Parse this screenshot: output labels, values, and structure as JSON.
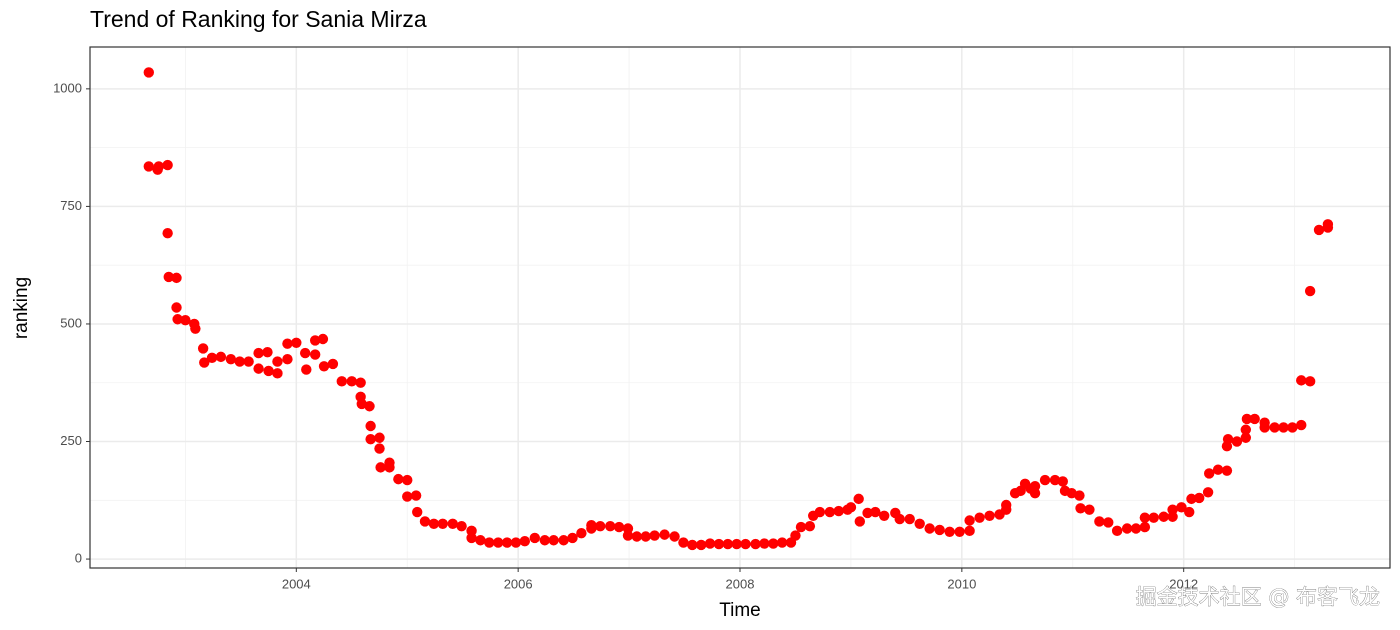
{
  "chart_data": {
    "type": "scatter",
    "title": "Trend of Ranking for Sania Mirza",
    "x_label": "Time",
    "y_label": "ranking",
    "color": "#ff0000",
    "grid": true,
    "watermark": "掘金技术社区 @ 布客飞龙",
    "xlim": [
      2002.14,
      2013.86
    ],
    "ylim": [
      -19,
      1089
    ],
    "xticks": [
      2004,
      2006,
      2008,
      2010,
      2012
    ],
    "yticks": [
      0,
      250,
      500,
      750,
      1000
    ],
    "x": [
      2002.67,
      2002.67,
      2002.75,
      2002.76,
      2002.84,
      2002.84,
      2002.85,
      2002.92,
      2002.92,
      2002.93,
      2003.0,
      2003.08,
      2003.09,
      2003.16,
      2003.17,
      2003.24,
      2003.32,
      2003.41,
      2003.49,
      2003.57,
      2003.66,
      2003.66,
      2003.74,
      2003.75,
      2003.83,
      2003.83,
      2003.92,
      2003.92,
      2004.0,
      2004.08,
      2004.09,
      2004.17,
      2004.17,
      2004.24,
      2004.25,
      2004.33,
      2004.41,
      2004.5,
      2004.58,
      2004.58,
      2004.59,
      2004.66,
      2004.67,
      2004.67,
      2004.75,
      2004.75,
      2004.76,
      2004.84,
      2004.84,
      2004.92,
      2005.0,
      2005.0,
      2005.08,
      2005.09,
      2005.16,
      2005.24,
      2005.32,
      2005.41,
      2005.49,
      2005.58,
      2005.58,
      2005.66,
      2005.74,
      2005.82,
      2005.9,
      2005.98,
      2006.06,
      2006.15,
      2006.24,
      2006.32,
      2006.41,
      2006.49,
      2006.57,
      2006.66,
      2006.66,
      2006.74,
      2006.83,
      2006.91,
      2006.99,
      2006.99,
      2007.07,
      2007.15,
      2007.23,
      2007.32,
      2007.41,
      2007.49,
      2007.57,
      2007.65,
      2007.73,
      2007.81,
      2007.89,
      2007.97,
      2008.05,
      2008.14,
      2008.22,
      2008.3,
      2008.38,
      2008.46,
      2008.5,
      2008.55,
      2008.63,
      2008.66,
      2008.72,
      2008.81,
      2008.89,
      2008.97,
      2009.0,
      2009.07,
      2009.08,
      2009.15,
      2009.22,
      2009.3,
      2009.4,
      2009.44,
      2009.53,
      2009.62,
      2009.71,
      2009.8,
      2009.89,
      2009.98,
      2010.07,
      2010.07,
      2010.16,
      2010.25,
      2010.34,
      2010.4,
      2010.4,
      2010.48,
      2010.53,
      2010.57,
      2010.62,
      2010.66,
      2010.66,
      2010.75,
      2010.84,
      2010.91,
      2010.93,
      2010.99,
      2011.06,
      2011.07,
      2011.15,
      2011.24,
      2011.32,
      2011.4,
      2011.49,
      2011.57,
      2011.65,
      2011.65,
      2011.73,
      2011.82,
      2011.9,
      2011.9,
      2011.98,
      2012.05,
      2012.07,
      2012.14,
      2012.22,
      2012.23,
      2012.31,
      2012.39,
      2012.39,
      2012.4,
      2012.48,
      2012.56,
      2012.56,
      2012.57,
      2012.64,
      2012.73,
      2012.73,
      2012.82,
      2012.9,
      2012.98,
      2013.06,
      2013.06,
      2013.14,
      2013.14,
      2013.22,
      2013.3,
      2013.3
    ],
    "values": [
      1035,
      835,
      828,
      835,
      838,
      693,
      600,
      598,
      535,
      510,
      508,
      500,
      490,
      448,
      418,
      428,
      430,
      425,
      420,
      420,
      438,
      405,
      440,
      400,
      395,
      420,
      425,
      458,
      460,
      438,
      403,
      435,
      465,
      468,
      410,
      415,
      378,
      378,
      375,
      345,
      330,
      325,
      283,
      255,
      258,
      235,
      195,
      205,
      195,
      170,
      168,
      133,
      135,
      100,
      80,
      75,
      75,
      75,
      70,
      60,
      45,
      40,
      35,
      35,
      35,
      35,
      38,
      45,
      40,
      40,
      40,
      45,
      55,
      65,
      72,
      70,
      70,
      68,
      65,
      50,
      48,
      48,
      50,
      52,
      48,
      35,
      30,
      30,
      33,
      32,
      32,
      32,
      32,
      32,
      33,
      33,
      35,
      35,
      50,
      68,
      70,
      92,
      100,
      100,
      102,
      105,
      110,
      128,
      80,
      98,
      100,
      92,
      98,
      85,
      85,
      75,
      65,
      62,
      58,
      58,
      60,
      82,
      88,
      92,
      95,
      105,
      115,
      140,
      145,
      160,
      150,
      155,
      140,
      168,
      168,
      165,
      145,
      140,
      135,
      108,
      105,
      80,
      78,
      60,
      65,
      65,
      68,
      88,
      88,
      90,
      90,
      105,
      110,
      100,
      128,
      130,
      142,
      182,
      190,
      188,
      240,
      255,
      250,
      258,
      275,
      298,
      298,
      280,
      290,
      280,
      280,
      280,
      285,
      380,
      378,
      570,
      700,
      705,
      712
    ]
  }
}
